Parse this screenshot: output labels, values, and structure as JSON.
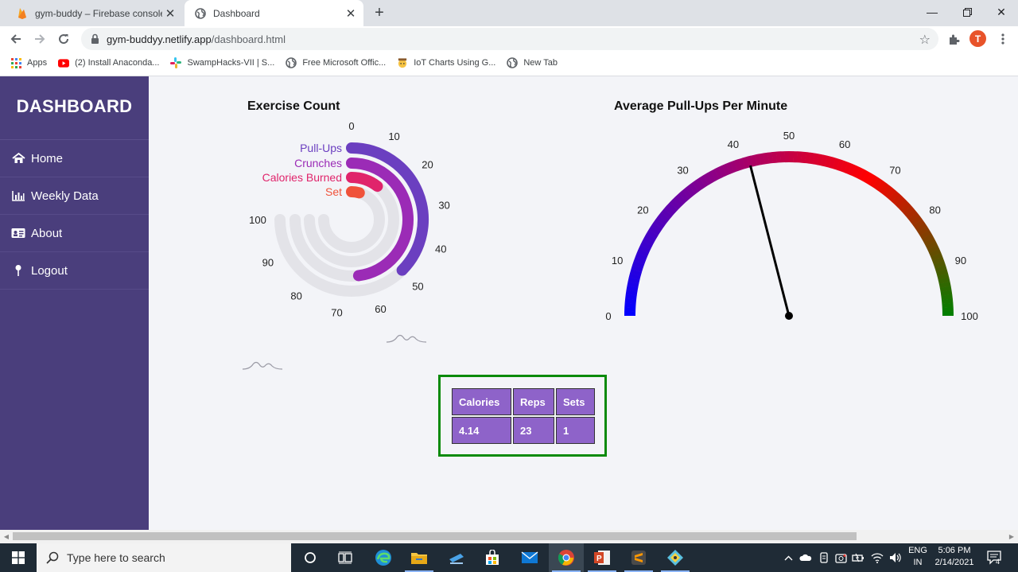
{
  "browser": {
    "tabs": [
      {
        "title": "gym-buddy – Firebase console",
        "active": false
      },
      {
        "title": "Dashboard",
        "active": true
      }
    ],
    "url_host": "gym-buddyy.netlify.app",
    "url_path": "/dashboard.html",
    "avatar_letter": "T",
    "bookmarks": [
      {
        "label": "Apps",
        "icon": "apps-grid-icon"
      },
      {
        "label": "(2) Install Anaconda...",
        "icon": "youtube-icon"
      },
      {
        "label": "SwampHacks-VII | S...",
        "icon": "slack-icon"
      },
      {
        "label": "Free Microsoft Offic...",
        "icon": "globe-icon"
      },
      {
        "label": "IoT Charts Using G...",
        "icon": "emoji-icon"
      },
      {
        "label": "New Tab",
        "icon": "globe-icon"
      }
    ]
  },
  "sidebar": {
    "title": "DASHBOARD",
    "items": [
      {
        "label": "Home",
        "icon": "home-icon"
      },
      {
        "label": "Weekly Data",
        "icon": "bar-chart-icon"
      },
      {
        "label": "About",
        "icon": "id-card-icon"
      },
      {
        "label": "Logout",
        "icon": "pin-icon"
      }
    ]
  },
  "exercise_title": "Exercise Count",
  "gauge_title": "Average Pull-Ups Per Minute",
  "stats": {
    "headers": [
      "Calories",
      "Reps",
      "Sets"
    ],
    "values": [
      "4.14",
      "23",
      "1"
    ]
  },
  "chart_data": [
    {
      "type": "radial-bar",
      "title": "Exercise Count",
      "axis_ticks": [
        "0",
        "10",
        "20",
        "30",
        "40",
        "50",
        "60",
        "70",
        "80",
        "90",
        "100"
      ],
      "axis_range": [
        0,
        100
      ],
      "series": [
        {
          "name": "Pull-Ups",
          "value": 50,
          "color": "#6b3fc0"
        },
        {
          "name": "Crunches",
          "value": 64,
          "color": "#9b2bb6"
        },
        {
          "name": "Calories Burned",
          "value": 14,
          "color": "#e0246b"
        },
        {
          "name": "Set",
          "value": 6,
          "color": "#f0523a"
        }
      ],
      "track_color": "#e3e3e8"
    },
    {
      "type": "gauge",
      "title": "Average Pull-Ups Per Minute",
      "axis_ticks": [
        "0",
        "10",
        "20",
        "30",
        "40",
        "50",
        "60",
        "70",
        "80",
        "90",
        "100"
      ],
      "axis_range": [
        0,
        100
      ],
      "value": 42,
      "gradient": [
        "#0000ff",
        "#8a008a",
        "#ff0000",
        "#008000"
      ]
    }
  ],
  "taskbar": {
    "search_placeholder": "Type here to search",
    "lang_line1": "ENG",
    "lang_line2": "IN",
    "time": "5:06 PM",
    "date": "2/14/2021",
    "notif_count": "4"
  }
}
